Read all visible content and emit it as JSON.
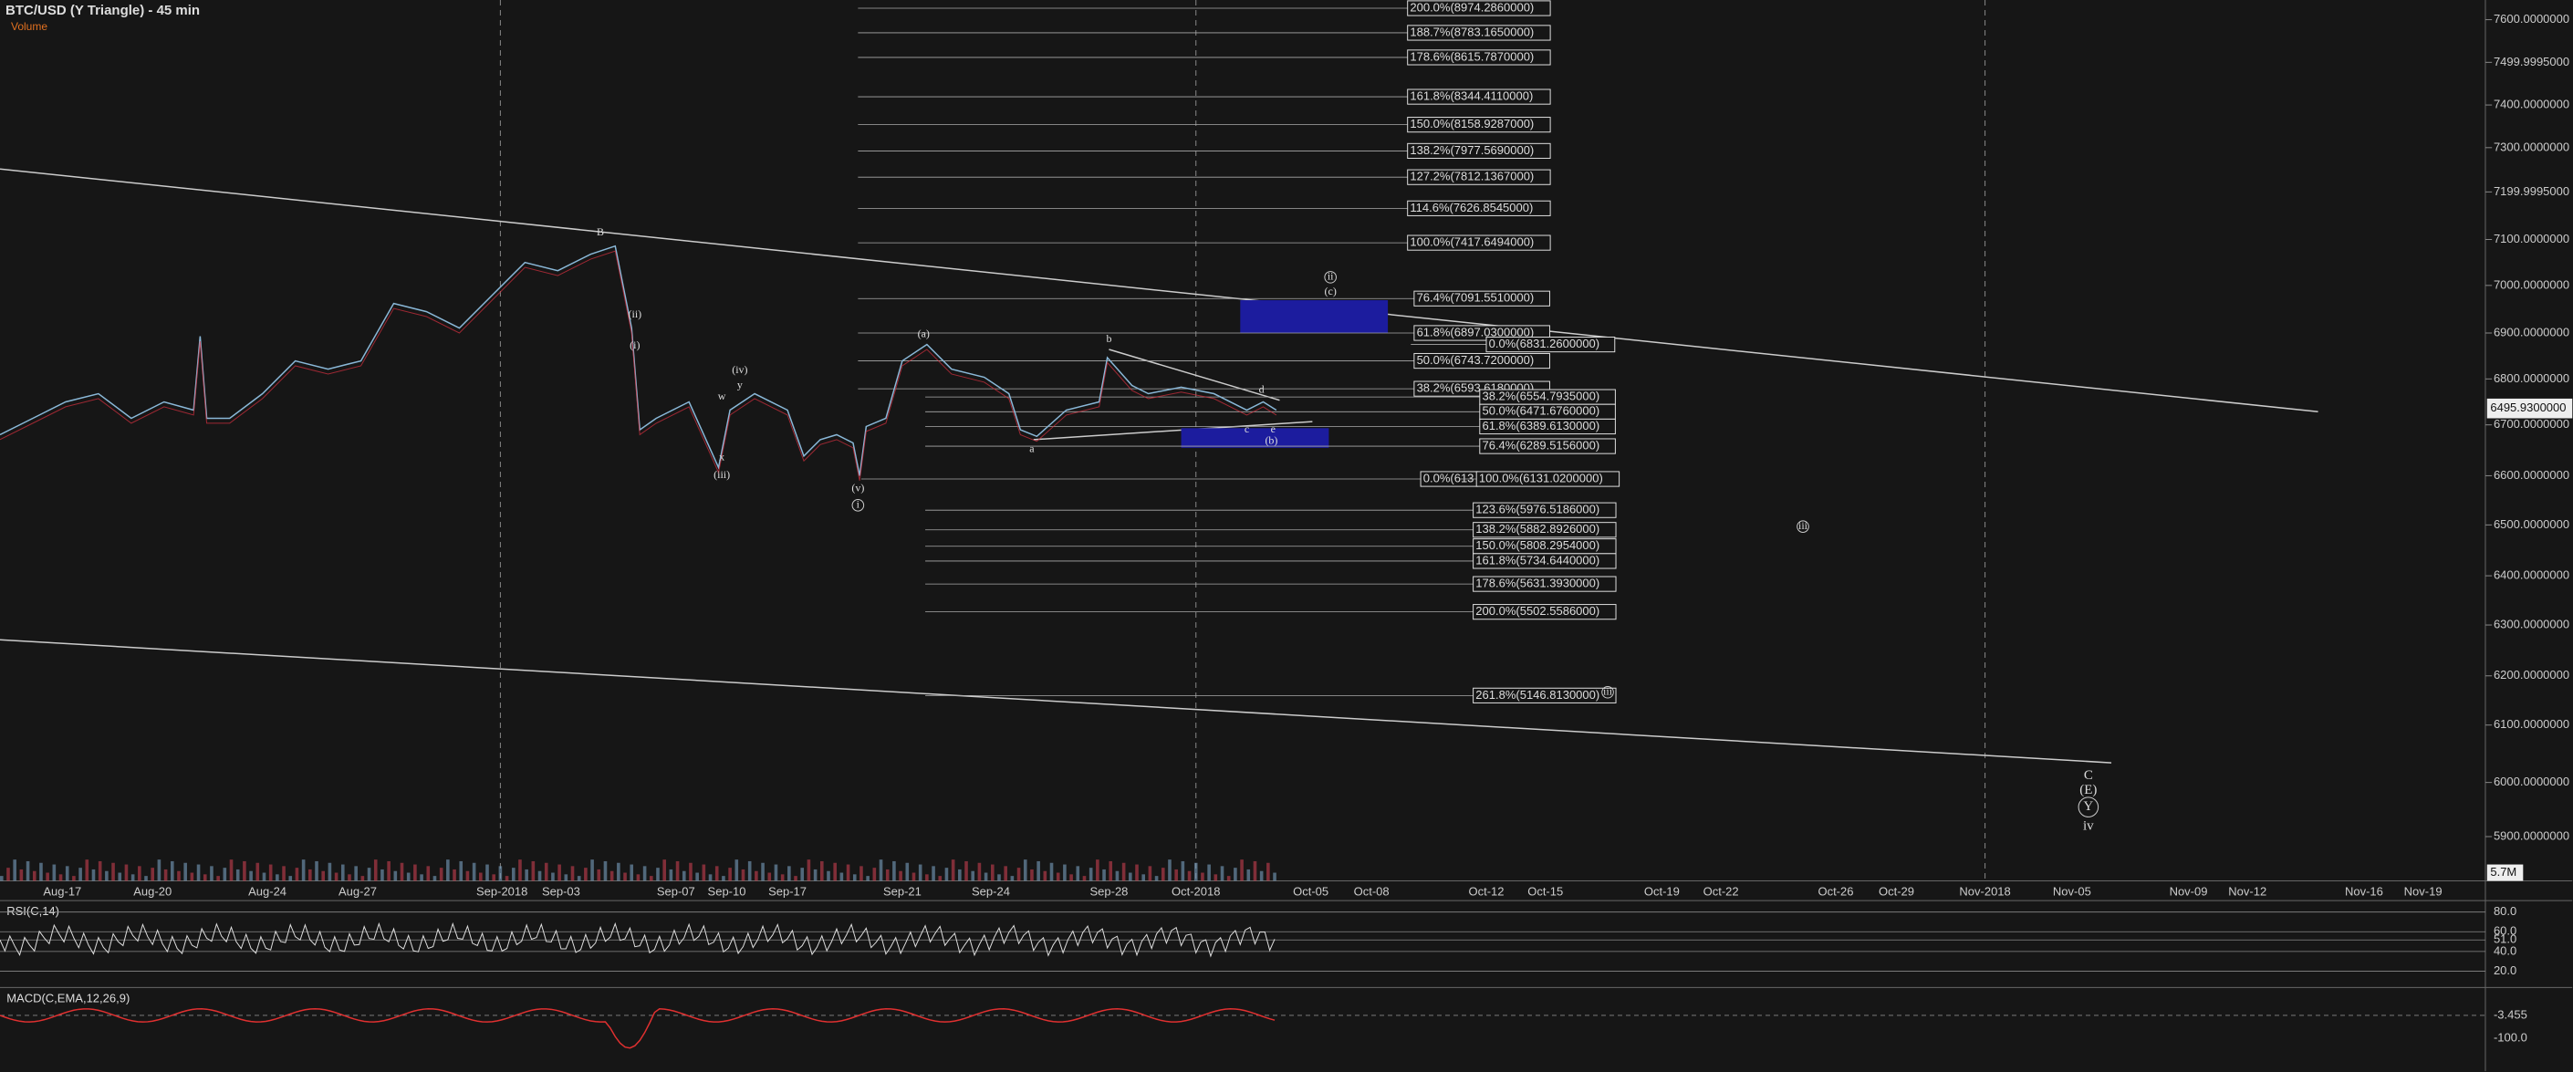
{
  "header": {
    "title": "BTC/USD (Y Triangle) - 45 min",
    "indicator": "Volume"
  },
  "price_axis": {
    "labels": [
      "7600.0000000",
      "7499.9995000",
      "7400.0000000",
      "7300.0000000",
      "7199.9995000",
      "7100.0000000",
      "7000.0000000",
      "6900.0000000",
      "6800.0000000",
      "6700.0000000",
      "6600.0000000",
      "6500.0000000",
      "6400.0000000",
      "6300.0000000",
      "6200.0000000",
      "6100.0000000",
      "6000.0000000",
      "5900.0000000"
    ],
    "current": "6495.9300000",
    "volume": "5.7M"
  },
  "date_axis": [
    "Aug-17",
    "Aug-20",
    "Aug-24",
    "Aug-27",
    "Sep-2018",
    "Sep-03",
    "Sep-07",
    "Sep-10",
    "Sep-17",
    "Sep-21",
    "Sep-24",
    "Sep-28",
    "Oct-2018",
    "Oct-05",
    "Oct-08",
    "Oct-12",
    "Oct-15",
    "Oct-19",
    "Oct-22",
    "Oct-26",
    "Oct-29",
    "Nov-2018",
    "Nov-05",
    "Nov-09",
    "Nov-12",
    "Nov-16",
    "Nov-19"
  ],
  "fib_levels": [
    "200.0%(8974.2860000)",
    "188.7%(8783.1650000)",
    "178.6%(8615.7870000)",
    "161.8%(8344.4110000)",
    "150.0%(8158.9287000)",
    "138.2%(7977.5690000)",
    "127.2%(7812.1367000)",
    "114.6%(7626.8545000)",
    "100.0%(7417.6494000)",
    "76.4%(7091.5510000)",
    "61.8%(6897.0300000)",
    "0.0%(6831.2600000)",
    "50.0%(6743.7200000)",
    "38.2%(6593.6180000)",
    "38.2%(6554.7935000)",
    "50.0%(6471.6760000)",
    "61.8%(6389.6130000)",
    "76.4%(6289.5156000)",
    "0.0%(613",
    "100.0%(6131.0200000)",
    "123.6%(5976.5186000)",
    "138.2%(5882.8926000)",
    "150.0%(5808.2954000)",
    "161.8%(5734.6440000)",
    "178.6%(5631.3930000)",
    "200.0%(5502.5586000)",
    "261.8%(5146.8130000)"
  ],
  "wave_labels": [
    "B",
    "(ii)",
    "(i)",
    "(iv)",
    "y",
    "w",
    "x",
    "(iii)",
    "(v)",
    "i",
    "(a)",
    "b",
    "a",
    "c",
    "d",
    "e",
    "(b)",
    "(c)",
    "ii",
    "iii",
    "iii",
    "C",
    "(E)",
    "Y",
    "iv"
  ],
  "rsi": {
    "title": "RSI(C,14)",
    "labels": [
      "80.0",
      "60.0",
      "51.0",
      "40.0",
      "20.0"
    ]
  },
  "macd": {
    "title": "MACD(C,EMA,12,26,9)",
    "labels": [
      "-3.455",
      "-100.0"
    ]
  }
}
